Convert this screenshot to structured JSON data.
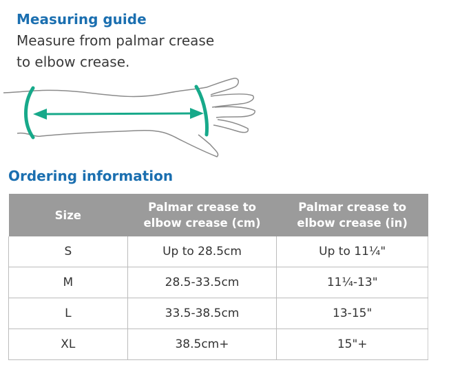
{
  "guide": {
    "title": "Measuring guide",
    "description_lines": [
      "Measure from palmar crease",
      "to elbow crease."
    ]
  },
  "colors": {
    "title": "#1b6fb0",
    "measure": "#17a98a",
    "header_bg": "#9b9b9b"
  },
  "ordering": {
    "title": "Ordering information",
    "headers": [
      [
        "Size"
      ],
      [
        "Palmar crease to",
        "elbow crease (cm)"
      ],
      [
        "Palmar crease to",
        "elbow crease (in)"
      ]
    ],
    "rows": [
      [
        "S",
        "Up to 28.5cm",
        "Up to 11¼\""
      ],
      [
        "M",
        "28.5-33.5cm",
        "11¼-13\""
      ],
      [
        "L",
        "33.5-38.5cm",
        "13-15\""
      ],
      [
        "XL",
        "38.5cm+",
        "15\"+"
      ]
    ]
  }
}
